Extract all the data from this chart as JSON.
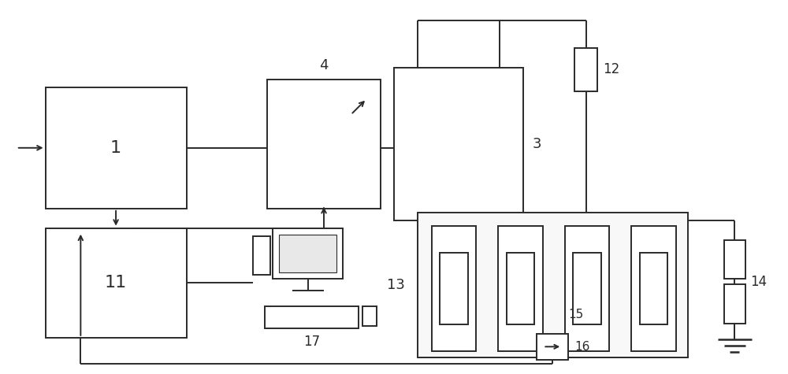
{
  "bg_color": "#ffffff",
  "line_color": "#2a2a2a",
  "lw": 1.4,
  "fig_w": 10.0,
  "fig_h": 4.75,
  "dpi": 100
}
